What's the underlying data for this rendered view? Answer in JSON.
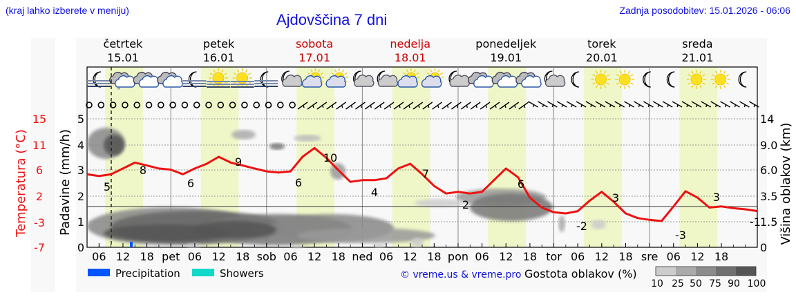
{
  "header": {
    "menu_hint": "(kraj lahko izberete v meniju)",
    "title": "Ajdovščina 7 dni",
    "last_update": "Zadnja posodobitev: 15.01.2026 - 06:06"
  },
  "days": [
    {
      "name": "četrtek",
      "date": "15.01",
      "weekend": false
    },
    {
      "name": "petek",
      "date": "16.01",
      "weekend": false
    },
    {
      "name": "sobota",
      "date": "17.01",
      "weekend": true
    },
    {
      "name": "nedelja",
      "date": "18.01",
      "weekend": true
    },
    {
      "name": "ponedeljek",
      "date": "19.01",
      "weekend": false
    },
    {
      "name": "torek",
      "date": "20.01",
      "weekend": false
    },
    {
      "name": "sreda",
      "date": "21.01",
      "weekend": false
    }
  ],
  "weather_icons": [
    "moon-fog",
    "cloud-drizzle",
    "cloud-overcast",
    "cloud-overcast",
    "moon-fog",
    "sun-fog",
    "sun-fog",
    "moon-fog",
    "moon-cloud",
    "sun-cloud",
    "sun-cloud",
    "moon-cloud",
    "moon-cloud",
    "sun-cloud",
    "sun-cloud",
    "moon-cloud",
    "cloud-overcast",
    "cloud-overcast",
    "cloud-overcast",
    "moon-cloud",
    "moon",
    "sun",
    "sun",
    "moon",
    "moon",
    "sun",
    "sun",
    "moon"
  ],
  "wind": {
    "calm_count": 18,
    "barb_count": 48
  },
  "axes": {
    "temperature_label": "Temperatura (°C)",
    "temperature_ticks": [
      "15",
      "11",
      "6",
      "2",
      "-3",
      "-7"
    ],
    "precip_label": "Padavine (mm/h)",
    "precip_ticks": [
      "5",
      "4",
      "3",
      "2",
      "1",
      "0"
    ],
    "cloud_height_label": "Višina oblakov (km)",
    "cloud_height_ticks": [
      "14",
      "9.0",
      "6.0",
      "3.5",
      "1.5",
      "0"
    ],
    "x_ticks": [
      "06",
      "12",
      "18",
      "pet",
      "06",
      "12",
      "18",
      "sob",
      "06",
      "12",
      "18",
      "ned",
      "06",
      "12",
      "18",
      "pon",
      "06",
      "12",
      "18",
      "tor",
      "06",
      "12",
      "18",
      "sre",
      "06",
      "12",
      "18"
    ]
  },
  "legend": {
    "precipitation": "Precipitation",
    "showers": "Showers",
    "precipitation_color": "#0055ff",
    "showers_color": "#11d8c8",
    "copyright": "© vreme.us & vreme.pro",
    "cloud_density_label": "Gostota oblakov (%)",
    "cloud_density_ticks": [
      "10",
      "25",
      "50",
      "75",
      "90",
      "100"
    ],
    "cloud_density_colors": [
      "#cccccc",
      "#aaaaaa",
      "#8c8c8c",
      "#707070",
      "#555555"
    ]
  },
  "colors": {
    "temperature_line": "#ee1111",
    "weekend_text": "#cc0000",
    "daylight_band": "#eff7c8",
    "title_blue": "#1010e0"
  },
  "chart_data": {
    "type": "line",
    "title": "Ajdovščina 7 dni",
    "xlabel": "",
    "ylabel": "Temperatura (°C)",
    "ylim": [
      -7,
      15
    ],
    "x_hours_from_thu_03h": [
      0,
      3,
      6,
      9,
      12,
      15,
      18,
      21,
      24,
      27,
      30,
      33,
      36,
      39,
      42,
      45,
      48,
      51,
      54,
      57,
      60,
      63,
      66,
      69,
      72,
      75,
      78,
      81,
      84,
      87,
      90,
      93,
      96,
      99,
      102,
      105,
      108,
      111,
      114,
      117,
      120,
      123,
      126,
      129,
      132,
      135,
      138,
      141,
      144,
      147,
      150,
      153,
      156,
      159,
      162,
      165,
      168
    ],
    "series": [
      {
        "name": "Temperatura",
        "values": [
          5.5,
          5.2,
          5.5,
          6.5,
          7.5,
          7,
          6.5,
          6.3,
          5.5,
          6.5,
          7.3,
          8.5,
          7.5,
          7,
          6.5,
          6,
          5.8,
          6,
          8.5,
          10,
          8.3,
          6.2,
          4.2,
          4.5,
          4.5,
          4.8,
          6.5,
          7.3,
          5.5,
          3.5,
          2.2,
          2.5,
          2.2,
          2.5,
          4.5,
          6.5,
          5,
          1.5,
          -0.2,
          -1,
          -1.2,
          -0.8,
          1,
          2.5,
          0.8,
          -1.2,
          -2,
          -2.3,
          -2.5,
          0,
          2.6,
          1.5,
          -0.2,
          0,
          -0.3,
          -0.5,
          -0.8
        ]
      }
    ],
    "annotations": [
      {
        "label": "5",
        "day": "četrtek",
        "time": "06"
      },
      {
        "label": "8",
        "day": "četrtek",
        "time": "14"
      },
      {
        "label": "6",
        "day": "petek",
        "time": "03"
      },
      {
        "label": "9",
        "day": "petek",
        "time": "13"
      },
      {
        "label": "6",
        "day": "sobota",
        "time": "04"
      },
      {
        "label": "10",
        "day": "sobota",
        "time": "13"
      },
      {
        "label": "4",
        "day": "nedelja",
        "time": "03"
      },
      {
        "label": "7",
        "day": "nedelja",
        "time": "13"
      },
      {
        "label": "2",
        "day": "ponedeljek",
        "time": "02"
      },
      {
        "label": "6",
        "day": "ponedeljek",
        "time": "13"
      },
      {
        "label": "-2",
        "day": "torek",
        "time": "04"
      },
      {
        "label": "3",
        "day": "torek",
        "time": "13"
      },
      {
        "label": "-3",
        "day": "sreda",
        "time": "05"
      },
      {
        "label": "3",
        "day": "sreda",
        "time": "13"
      },
      {
        "label": "-1",
        "day": "sreda",
        "time": "24"
      }
    ],
    "precipitation_mm_h": [
      {
        "day": "četrtek",
        "time": "12",
        "value": 0.1
      }
    ],
    "grid": true,
    "daylight_bands": true
  }
}
